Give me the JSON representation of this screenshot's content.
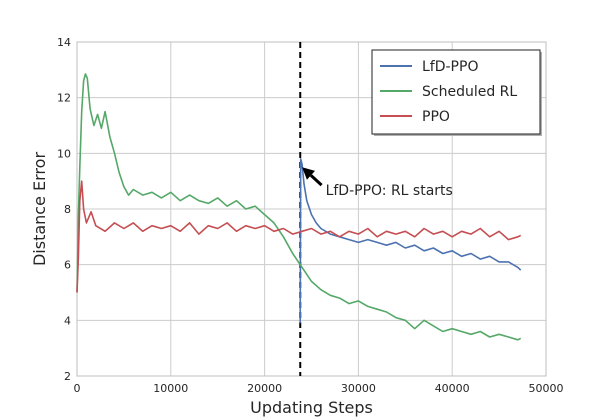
{
  "chart_data": {
    "type": "line",
    "xlabel": "Updating Steps",
    "ylabel": "Distance Error",
    "xlim": [
      0,
      50000
    ],
    "ylim": [
      2,
      14
    ],
    "xticks": [
      0,
      10000,
      20000,
      30000,
      40000,
      50000
    ],
    "yticks": [
      2,
      4,
      6,
      8,
      10,
      12,
      14
    ],
    "grid": true,
    "legend_position": "top-right",
    "series": [
      {
        "name": "LfD-PPO",
        "color": "#4c72b0",
        "points": [
          [
            23800,
            3.9
          ],
          [
            23850,
            9.8
          ],
          [
            24000,
            9.6
          ],
          [
            24200,
            8.9
          ],
          [
            24500,
            8.3
          ],
          [
            25000,
            7.8
          ],
          [
            25500,
            7.5
          ],
          [
            26000,
            7.3
          ],
          [
            27000,
            7.1
          ],
          [
            28000,
            7.0
          ],
          [
            29000,
            6.9
          ],
          [
            30000,
            6.8
          ],
          [
            31000,
            6.9
          ],
          [
            32000,
            6.8
          ],
          [
            33000,
            6.7
          ],
          [
            34000,
            6.8
          ],
          [
            35000,
            6.6
          ],
          [
            36000,
            6.7
          ],
          [
            37000,
            6.5
          ],
          [
            38000,
            6.6
          ],
          [
            39000,
            6.4
          ],
          [
            40000,
            6.5
          ],
          [
            41000,
            6.3
          ],
          [
            42000,
            6.4
          ],
          [
            43000,
            6.2
          ],
          [
            44000,
            6.3
          ],
          [
            45000,
            6.1
          ],
          [
            46000,
            6.1
          ],
          [
            47000,
            5.9
          ],
          [
            47300,
            5.8
          ]
        ]
      },
      {
        "name": "Scheduled RL",
        "color": "#55a868",
        "points": [
          [
            0,
            5.0
          ],
          [
            150,
            7.8
          ],
          [
            300,
            9.5
          ],
          [
            500,
            11.5
          ],
          [
            700,
            12.6
          ],
          [
            900,
            12.85
          ],
          [
            1100,
            12.7
          ],
          [
            1400,
            11.6
          ],
          [
            1800,
            11.0
          ],
          [
            2200,
            11.4
          ],
          [
            2600,
            10.9
          ],
          [
            3000,
            11.5
          ],
          [
            3500,
            10.6
          ],
          [
            4000,
            10.0
          ],
          [
            4500,
            9.3
          ],
          [
            5000,
            8.8
          ],
          [
            5500,
            8.5
          ],
          [
            6000,
            8.7
          ],
          [
            7000,
            8.5
          ],
          [
            8000,
            8.6
          ],
          [
            9000,
            8.4
          ],
          [
            10000,
            8.6
          ],
          [
            11000,
            8.3
          ],
          [
            12000,
            8.5
          ],
          [
            13000,
            8.3
          ],
          [
            14000,
            8.2
          ],
          [
            15000,
            8.4
          ],
          [
            16000,
            8.1
          ],
          [
            17000,
            8.3
          ],
          [
            18000,
            8.0
          ],
          [
            19000,
            8.1
          ],
          [
            20000,
            7.8
          ],
          [
            21000,
            7.5
          ],
          [
            22000,
            7.0
          ],
          [
            23000,
            6.4
          ],
          [
            24000,
            5.9
          ],
          [
            25000,
            5.4
          ],
          [
            26000,
            5.1
          ],
          [
            27000,
            4.9
          ],
          [
            28000,
            4.8
          ],
          [
            29000,
            4.6
          ],
          [
            30000,
            4.7
          ],
          [
            31000,
            4.5
          ],
          [
            32000,
            4.4
          ],
          [
            33000,
            4.3
          ],
          [
            34000,
            4.1
          ],
          [
            35000,
            4.0
          ],
          [
            36000,
            3.7
          ],
          [
            37000,
            4.0
          ],
          [
            38000,
            3.8
          ],
          [
            39000,
            3.6
          ],
          [
            40000,
            3.7
          ],
          [
            41000,
            3.6
          ],
          [
            42000,
            3.5
          ],
          [
            43000,
            3.6
          ],
          [
            44000,
            3.4
          ],
          [
            45000,
            3.5
          ],
          [
            46000,
            3.4
          ],
          [
            47000,
            3.3
          ],
          [
            47300,
            3.35
          ]
        ]
      },
      {
        "name": "PPO",
        "color": "#c44e52",
        "points": [
          [
            0,
            5.0
          ],
          [
            150,
            6.3
          ],
          [
            300,
            8.3
          ],
          [
            500,
            9.0
          ],
          [
            700,
            8.0
          ],
          [
            1000,
            7.5
          ],
          [
            1500,
            7.9
          ],
          [
            2000,
            7.4
          ],
          [
            3000,
            7.2
          ],
          [
            4000,
            7.5
          ],
          [
            5000,
            7.3
          ],
          [
            6000,
            7.5
          ],
          [
            7000,
            7.2
          ],
          [
            8000,
            7.4
          ],
          [
            9000,
            7.3
          ],
          [
            10000,
            7.4
          ],
          [
            11000,
            7.2
          ],
          [
            12000,
            7.5
          ],
          [
            13000,
            7.1
          ],
          [
            14000,
            7.4
          ],
          [
            15000,
            7.3
          ],
          [
            16000,
            7.5
          ],
          [
            17000,
            7.2
          ],
          [
            18000,
            7.4
          ],
          [
            19000,
            7.3
          ],
          [
            20000,
            7.4
          ],
          [
            21000,
            7.2
          ],
          [
            22000,
            7.3
          ],
          [
            23000,
            7.1
          ],
          [
            24000,
            7.2
          ],
          [
            25000,
            7.3
          ],
          [
            26000,
            7.1
          ],
          [
            27000,
            7.2
          ],
          [
            28000,
            7.0
          ],
          [
            29000,
            7.2
          ],
          [
            30000,
            7.1
          ],
          [
            31000,
            7.3
          ],
          [
            32000,
            7.0
          ],
          [
            33000,
            7.2
          ],
          [
            34000,
            7.1
          ],
          [
            35000,
            7.2
          ],
          [
            36000,
            7.0
          ],
          [
            37000,
            7.3
          ],
          [
            38000,
            7.1
          ],
          [
            39000,
            7.2
          ],
          [
            40000,
            7.0
          ],
          [
            41000,
            7.2
          ],
          [
            42000,
            7.1
          ],
          [
            43000,
            7.3
          ],
          [
            44000,
            7.0
          ],
          [
            45000,
            7.2
          ],
          [
            46000,
            6.9
          ],
          [
            47000,
            7.0
          ],
          [
            47300,
            7.05
          ]
        ]
      }
    ],
    "vline": {
      "x": 23800,
      "style": "dashed",
      "color": "#000000"
    },
    "annotation": {
      "text": "LfD-PPO: RL starts",
      "point": [
        24000,
        9.5
      ],
      "text_at": [
        26500,
        8.5
      ]
    }
  }
}
